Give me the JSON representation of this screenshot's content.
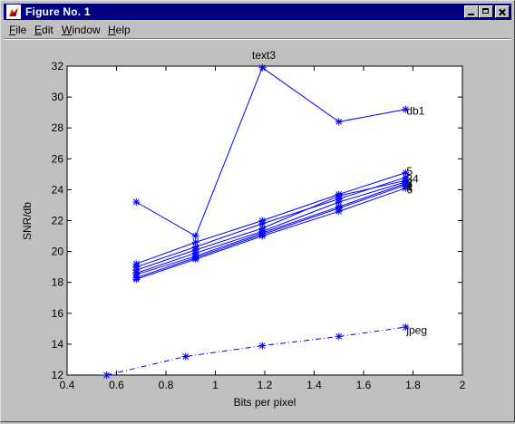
{
  "window": {
    "title": "Figure No. 1",
    "buttons": {
      "minimize": "minimize",
      "maximize": "maximize",
      "close": "close"
    }
  },
  "menu": {
    "items": [
      {
        "key": "file",
        "underline": "F",
        "rest": "ile"
      },
      {
        "key": "edit",
        "underline": "E",
        "rest": "dit"
      },
      {
        "key": "window",
        "underline": "W",
        "rest": "indow"
      },
      {
        "key": "help",
        "underline": "H",
        "rest": "elp"
      }
    ]
  },
  "colors": {
    "series": "#0000ff",
    "axes_bg": "#ffffff",
    "figure_bg": "#c0c0c0",
    "titlebar": "#000080"
  },
  "chart_data": {
    "type": "line",
    "title": "text3",
    "xlabel": "Bits per pixel",
    "ylabel": "SNR/db",
    "xlim": [
      0.4,
      2
    ],
    "ylim": [
      12,
      32
    ],
    "xticks": [
      "0.4",
      "0.6",
      "0.8",
      "1",
      "1.2",
      "1.4",
      "1.6",
      "1.8",
      "2"
    ],
    "yticks": [
      "12",
      "14",
      "16",
      "18",
      "20",
      "22",
      "24",
      "26",
      "28",
      "30",
      "32"
    ],
    "grid": false,
    "series": [
      {
        "name": "db1",
        "style": "solid",
        "x": [
          0.68,
          0.92,
          1.19,
          1.5,
          1.77
        ],
        "y": [
          23.2,
          21.0,
          31.9,
          28.4,
          29.2
        ]
      },
      {
        "name": "5",
        "style": "solid",
        "x": [
          0.68,
          0.92,
          1.19,
          1.5,
          1.77
        ],
        "y": [
          19.2,
          20.6,
          22.0,
          23.7,
          25.1
        ]
      },
      {
        "name": "34",
        "style": "solid",
        "x": [
          0.68,
          0.92,
          1.19,
          1.5,
          1.77
        ],
        "y": [
          19.0,
          20.3,
          21.8,
          23.4,
          24.8
        ]
      },
      {
        "name": "3",
        "style": "solid",
        "x": [
          0.68,
          0.92,
          1.19,
          1.5,
          1.77
        ],
        "y": [
          18.8,
          20.1,
          21.5,
          23.6,
          24.6
        ]
      },
      {
        "name": "2",
        "style": "solid",
        "x": [
          0.68,
          0.92,
          1.19,
          1.5,
          1.77
        ],
        "y": [
          18.6,
          19.9,
          21.3,
          23.2,
          24.5
        ]
      },
      {
        "name": "4",
        "style": "solid",
        "x": [
          0.68,
          0.92,
          1.19,
          1.5,
          1.77
        ],
        "y": [
          18.5,
          19.7,
          21.2,
          22.9,
          24.4
        ]
      },
      {
        "name": "6",
        "style": "solid",
        "x": [
          0.68,
          0.92,
          1.19,
          1.5,
          1.77
        ],
        "y": [
          18.3,
          19.6,
          21.1,
          22.8,
          24.3
        ]
      },
      {
        "name": "1",
        "style": "solid",
        "x": [
          0.68,
          0.92,
          1.19,
          1.5,
          1.77
        ],
        "y": [
          18.2,
          19.5,
          21.0,
          22.6,
          24.1
        ]
      },
      {
        "name": "jpeg",
        "style": "dashdot",
        "x": [
          0.56,
          0.88,
          1.19,
          1.5,
          1.77
        ],
        "y": [
          12.0,
          13.2,
          13.9,
          14.5,
          15.1
        ]
      }
    ],
    "labels": [
      {
        "text": "db1",
        "x": 1.77,
        "y": 29.1
      },
      {
        "text": "5",
        "x": 1.77,
        "y": 25.2
      },
      {
        "text": "34",
        "x": 1.77,
        "y": 24.7
      },
      {
        "text": "3",
        "x": 1.77,
        "y": 24.4
      },
      {
        "text": "2",
        "x": 1.77,
        "y": 24.4
      },
      {
        "text": "4",
        "x": 1.77,
        "y": 24.1
      },
      {
        "text": "6",
        "x": 1.77,
        "y": 24.0
      },
      {
        "text": "1",
        "x": 1.77,
        "y": 24.2
      },
      {
        "text": "jpeg",
        "x": 1.77,
        "y": 14.9
      }
    ]
  }
}
